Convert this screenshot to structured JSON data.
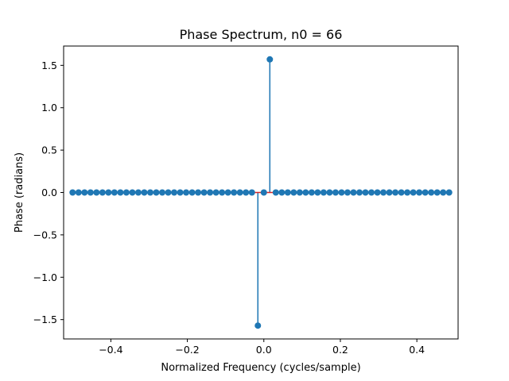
{
  "chart_data": {
    "type": "stem",
    "title": "Phase Spectrum, n0 = 66",
    "xlabel": "Normalized Frequency (cycles/sample)",
    "ylabel": "Phase (radians)",
    "xlim": [
      -0.5234375,
      0.5078125
    ],
    "ylim": [
      -1.727876,
      1.727876
    ],
    "x_ticks": [
      -0.4,
      -0.2,
      0.0,
      0.2,
      0.4
    ],
    "x_tick_labels": [
      "−0.4",
      "−0.2",
      "0.0",
      "0.2",
      "0.4"
    ],
    "y_ticks": [
      -1.5,
      -1.0,
      -0.5,
      0.0,
      0.5,
      1.0,
      1.5
    ],
    "y_tick_labels": [
      "−1.5",
      "−1.0",
      "−0.5",
      "0.0",
      "0.5",
      "1.0",
      "1.5"
    ],
    "grid": false,
    "n_points": 64,
    "x_start": -0.5,
    "x_step": 0.015625,
    "series": [
      {
        "points": [
          {
            "x": -0.015625,
            "y": -1.5708
          },
          {
            "x": 0.0,
            "y": 0.0
          },
          {
            "x": 0.015625,
            "y": 1.5708
          }
        ],
        "default_y": 0.0,
        "marker_color": "#1f77b4",
        "stem_color": "#1f77b4",
        "baseline_color": "#d62728"
      }
    ]
  }
}
